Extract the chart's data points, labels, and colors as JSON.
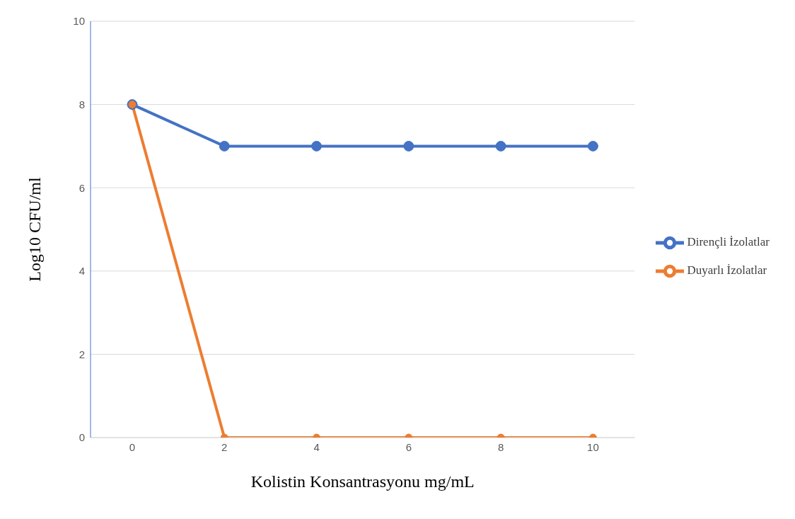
{
  "chart_data": {
    "type": "line",
    "xlabel": "Kolistin Konsantrasyonu mg/mL",
    "ylabel": "Log10 CFU/ml",
    "categories": [
      "0",
      "2",
      "4",
      "6",
      "8",
      "10"
    ],
    "series": [
      {
        "name": "Dirençli İzolatlar",
        "color": "#4472c4",
        "values": [
          8,
          7,
          7,
          7,
          7,
          7
        ]
      },
      {
        "name": "Duyarlı İzolatlar",
        "color": "#ed7d31",
        "values": [
          8,
          0,
          0,
          0,
          0,
          0
        ]
      }
    ],
    "ylim": [
      0,
      10
    ],
    "yticks": [
      0,
      2,
      4,
      6,
      8,
      10
    ],
    "grid": "y",
    "legend": "right",
    "marker": "circle",
    "line_style": "solid"
  }
}
